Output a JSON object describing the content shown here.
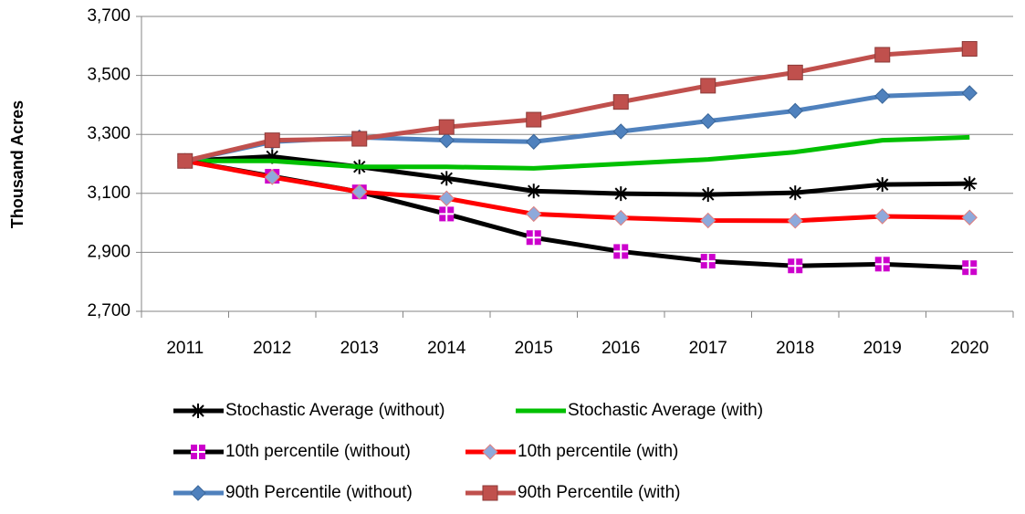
{
  "chart_data": {
    "type": "line",
    "y_axis_label": "Thousand Acres",
    "categories": [
      "2011",
      "2012",
      "2013",
      "2014",
      "2015",
      "2016",
      "2017",
      "2018",
      "2019",
      "2020"
    ],
    "ylim": [
      2700,
      3700
    ],
    "yticks": [
      {
        "value": 2700,
        "label": "2,700"
      },
      {
        "value": 2900,
        "label": "2,900"
      },
      {
        "value": 3100,
        "label": "3,100"
      },
      {
        "value": 3300,
        "label": "3,300"
      },
      {
        "value": 3500,
        "label": "3,500"
      },
      {
        "value": 3700,
        "label": "3,700"
      }
    ],
    "grid": true,
    "series": [
      {
        "name": "Stochastic Average (without)",
        "color": "#000000",
        "marker": "star",
        "marker_color": "#000000",
        "values": [
          3210,
          3225,
          3190,
          3151,
          3108,
          3099,
          3096,
          3102,
          3130,
          3133
        ]
      },
      {
        "name": "Stochastic Average (with)",
        "color": "#00c000",
        "marker": "none",
        "marker_color": "#00c000",
        "values": [
          3210,
          3210,
          3190,
          3190,
          3185,
          3200,
          3215,
          3240,
          3280,
          3290
        ]
      },
      {
        "name": "10th percentile (without)",
        "color": "#000000",
        "marker": "cross-square",
        "marker_color": "#cc00cc",
        "values": [
          3210,
          3158,
          3105,
          3030,
          2950,
          2903,
          2870,
          2854,
          2860,
          2848
        ]
      },
      {
        "name": "10th percentile (with)",
        "color": "#ff0000",
        "marker": "diamond",
        "marker_color": "#8ea9db",
        "values": [
          3210,
          3155,
          3105,
          3083,
          3030,
          3017,
          3008,
          3007,
          3022,
          3018
        ]
      },
      {
        "name": "90th Percentile (without)",
        "color": "#4f81bd",
        "marker": "diamond",
        "marker_color": "#4f81bd",
        "values": [
          3210,
          3275,
          3290,
          3280,
          3275,
          3310,
          3345,
          3380,
          3430,
          3440
        ]
      },
      {
        "name": "90th Percentile (with)",
        "color": "#c0504d",
        "marker": "square",
        "marker_color": "#c0504d",
        "values": [
          3210,
          3280,
          3285,
          3325,
          3350,
          3410,
          3465,
          3510,
          3570,
          3590
        ]
      }
    ]
  }
}
